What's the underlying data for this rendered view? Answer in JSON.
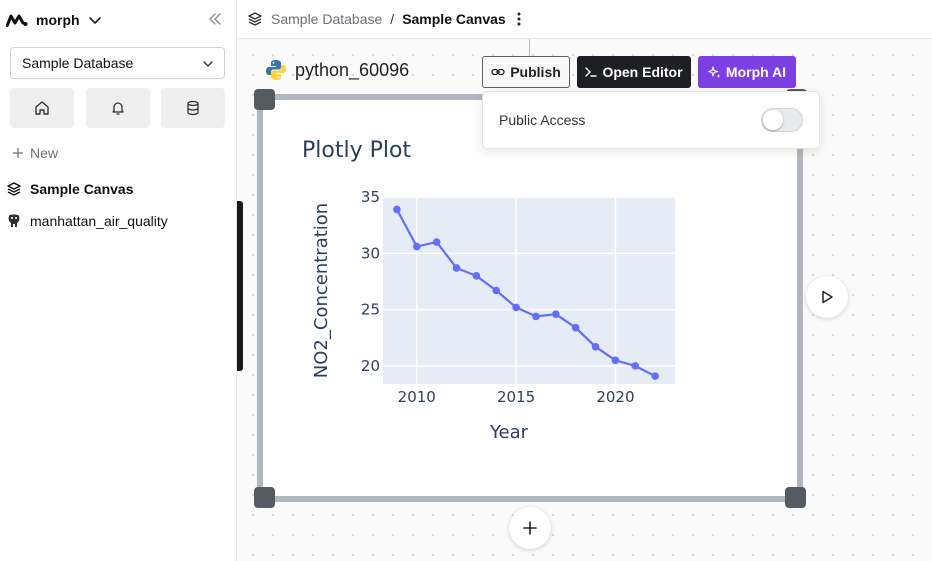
{
  "sidebar": {
    "brand": "morph",
    "database_select": "Sample Database",
    "new_label": "New",
    "items": [
      {
        "label": "Sample Canvas",
        "icon": "layers-icon"
      },
      {
        "label": "manhattan_air_quality",
        "icon": "postgres-elephant-icon"
      }
    ]
  },
  "header": {
    "breadcrumb": [
      "Sample Database",
      "/",
      "Sample Canvas"
    ]
  },
  "node": {
    "title": "python_60096",
    "publish_label": "Publish",
    "open_editor_label": "Open Editor",
    "morph_ai_label": "Morph AI",
    "public_access_label": "Public Access",
    "public_access_enabled": false
  },
  "colors": {
    "accent": "#7b3fe4",
    "dark_button": "#1d1f22",
    "series": "#636efa",
    "plot_bg": "#e5ecf6"
  },
  "chart_data": {
    "type": "line",
    "title": "Plotly Plot",
    "xlabel": "Year",
    "ylabel": "NO2_Concentration",
    "x": [
      2009,
      2010,
      2011,
      2012,
      2013,
      2014,
      2015,
      2016,
      2017,
      2018,
      2019,
      2020,
      2021,
      2022
    ],
    "y": [
      33.9,
      30.6,
      31.0,
      28.7,
      28.0,
      26.7,
      25.2,
      24.4,
      24.6,
      23.4,
      21.7,
      20.5,
      20.0,
      19.1
    ],
    "xticks": [
      "2010",
      "2015",
      "2020"
    ],
    "yticks": [
      "20",
      "25",
      "30",
      "35"
    ],
    "xlim": [
      2008.3,
      2023.0
    ],
    "ylim": [
      18.4,
      35.0
    ],
    "grid": true,
    "legend": "none"
  }
}
